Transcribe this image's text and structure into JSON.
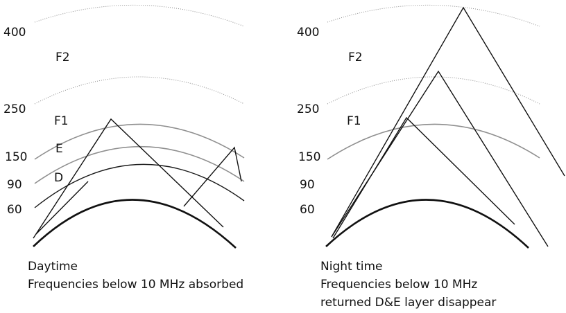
{
  "left_panel": {
    "altitude_labels": [
      "400",
      "250",
      "150",
      "90",
      "60"
    ],
    "layer_labels": [
      "F2",
      "F1",
      "E",
      "D"
    ],
    "caption_line1": "Daytime",
    "caption_line2": "Frequencies below 10 MHz absorbed"
  },
  "right_panel": {
    "altitude_labels": [
      "400",
      "250",
      "150",
      "90",
      "60"
    ],
    "layer_labels": [
      "F2",
      "F1"
    ],
    "caption_line1": "Night time",
    "caption_line2": "Frequencies below 10 MHz",
    "caption_line3": "returned D&E layer disappear"
  }
}
